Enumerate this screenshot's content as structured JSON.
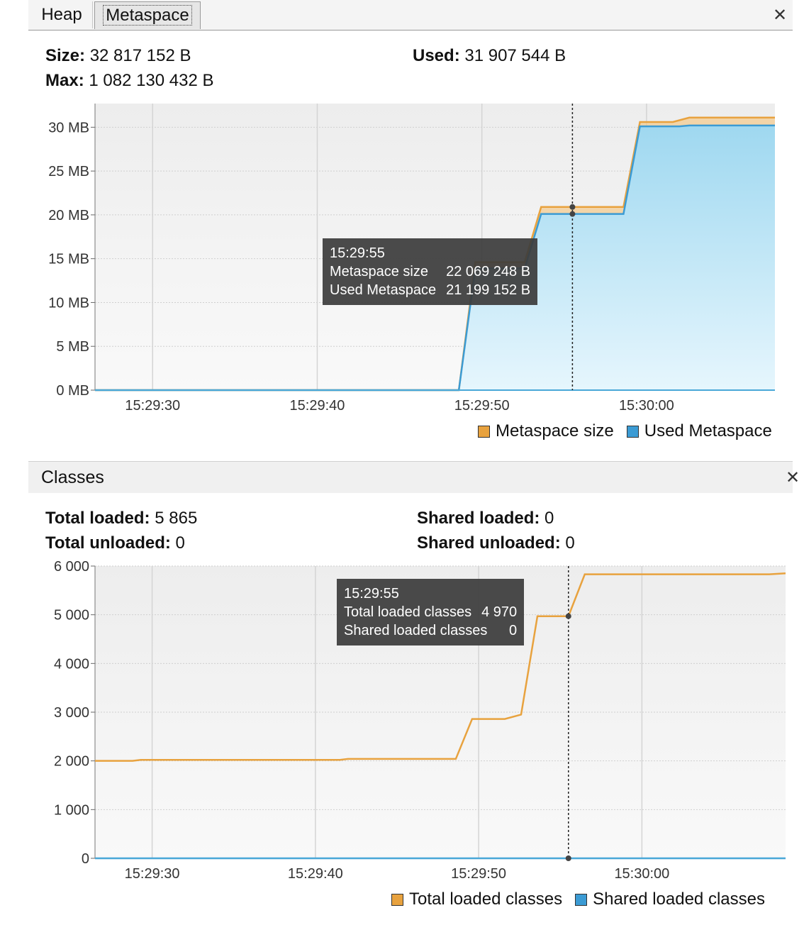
{
  "tabs": {
    "heap": "Heap",
    "metaspace": "Metaspace"
  },
  "close_glyph": "✕",
  "metaspace_panel": {
    "size_label": "Size:",
    "size_value": "32 817 152 B",
    "used_label": "Used:",
    "used_value": "31 907 544 B",
    "max_label": "Max:",
    "max_value": "1 082 130 432 B",
    "tooltip": {
      "time": "15:29:55",
      "rows": [
        {
          "label": "Metaspace size",
          "value": "22 069 248 B"
        },
        {
          "label": "Used Metaspace",
          "value": "21 199 152 B"
        }
      ]
    },
    "legend": [
      {
        "label": "Metaspace size",
        "color": "#e8a23e"
      },
      {
        "label": "Used Metaspace",
        "color": "#3b9bd4"
      }
    ]
  },
  "classes_panel": {
    "title": "Classes",
    "total_loaded_label": "Total loaded:",
    "total_loaded_value": "5 865",
    "total_unloaded_label": "Total unloaded:",
    "total_unloaded_value": "0",
    "shared_loaded_label": "Shared loaded:",
    "shared_loaded_value": "0",
    "shared_unloaded_label": "Shared unloaded:",
    "shared_unloaded_value": "0",
    "tooltip": {
      "time": "15:29:55",
      "rows": [
        {
          "label": "Total loaded classes",
          "value": "4 970"
        },
        {
          "label": "Shared loaded classes",
          "value": "0"
        }
      ]
    },
    "legend": [
      {
        "label": "Total loaded classes",
        "color": "#e8a23e"
      },
      {
        "label": "Shared loaded classes",
        "color": "#3b9bd4"
      }
    ]
  },
  "chart_data": [
    {
      "type": "area",
      "x_label_ticks": [
        "15:29:30",
        "15:29:40",
        "15:29:50",
        "15:30:00"
      ],
      "x_ticks_seconds": [
        30,
        40,
        50,
        60
      ],
      "xlim_seconds": [
        26.5,
        67.8
      ],
      "y_ticks": [
        "0 MB",
        "5 MB",
        "10 MB",
        "15 MB",
        "20 MB",
        "25 MB",
        "30 MB"
      ],
      "ylim": [
        0,
        32.7
      ],
      "y_unit": "MB",
      "cursor_time_seconds": 55.5,
      "series": [
        {
          "name": "Metaspace size",
          "color": "#e8a23e",
          "x": [
            26.5,
            48.6,
            49.6,
            52.6,
            53.6,
            56.0,
            58.6,
            59.6,
            61.6,
            62.6,
            67.8
          ],
          "y": [
            0,
            0,
            14.6,
            14.6,
            20.9,
            20.9,
            20.9,
            30.6,
            30.6,
            31.1,
            31.1
          ]
        },
        {
          "name": "Used Metaspace",
          "color": "#3b9bd4",
          "x": [
            26.5,
            48.6,
            49.6,
            52.6,
            53.6,
            56.0,
            58.6,
            59.6,
            62.0,
            62.6,
            67.8
          ],
          "y": [
            0,
            0,
            13.9,
            13.9,
            20.1,
            20.1,
            20.1,
            30.1,
            30.1,
            30.2,
            30.2
          ]
        }
      ]
    },
    {
      "type": "line",
      "x_label_ticks": [
        "15:29:30",
        "15:29:40",
        "15:29:50",
        "15:30:00"
      ],
      "x_ticks_seconds": [
        30,
        40,
        50,
        60
      ],
      "xlim_seconds": [
        26.5,
        68.8
      ],
      "y_ticks": [
        "0",
        "1 000",
        "2 000",
        "3 000",
        "4 000",
        "5 000",
        "6 000"
      ],
      "ylim": [
        0,
        6000
      ],
      "cursor_time_seconds": 55.5,
      "series": [
        {
          "name": "Total loaded classes",
          "color": "#e8a23e",
          "x": [
            26.5,
            28.8,
            29.3,
            41.5,
            42.0,
            48.6,
            49.6,
            51.6,
            52.6,
            53.6,
            55.5,
            56.5,
            67.8,
            68.8
          ],
          "y": [
            2000,
            2000,
            2020,
            2020,
            2040,
            2040,
            2860,
            2860,
            2950,
            4970,
            4970,
            5830,
            5830,
            5850
          ]
        },
        {
          "name": "Shared loaded classes",
          "color": "#3b9bd4",
          "x": [
            26.5,
            68.8
          ],
          "y": [
            0,
            0
          ]
        }
      ]
    }
  ]
}
